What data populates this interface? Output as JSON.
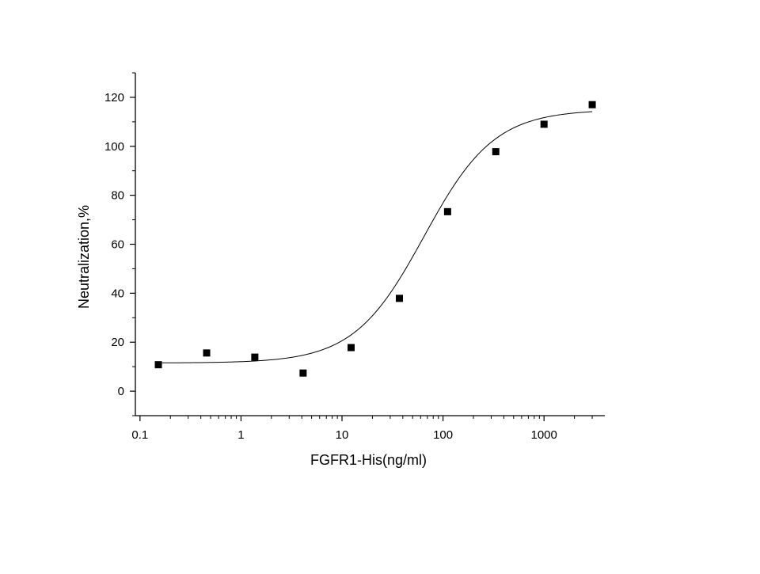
{
  "chart_data": {
    "type": "scatter",
    "title": "",
    "xlabel": "FGFR1-His(ng/ml)",
    "ylabel": "Neutralization,%",
    "x_scale": "log",
    "xlim": [
      0.09,
      4000
    ],
    "ylim": [
      -10,
      130
    ],
    "x_ticks": [
      0.1,
      1,
      10,
      100,
      1000
    ],
    "x_tick_labels": [
      "0.1",
      "1",
      "10",
      "100",
      "1000"
    ],
    "y_ticks": [
      0,
      20,
      40,
      60,
      80,
      100,
      120
    ],
    "y_tick_labels": [
      "0",
      "20",
      "40",
      "60",
      "80",
      "100",
      "120"
    ],
    "grid": false,
    "legend": "none",
    "series": [
      {
        "marker": "square",
        "color": "#000000",
        "points": [
          {
            "x": 0.152,
            "y": 10.8
          },
          {
            "x": 0.457,
            "y": 15.6
          },
          {
            "x": 1.37,
            "y": 13.9
          },
          {
            "x": 4.12,
            "y": 7.4
          },
          {
            "x": 12.3,
            "y": 17.8
          },
          {
            "x": 37.0,
            "y": 37.9
          },
          {
            "x": 111,
            "y": 73.3
          },
          {
            "x": 333,
            "y": 97.8
          },
          {
            "x": 1000,
            "y": 109
          },
          {
            "x": 3000,
            "y": 117
          }
        ]
      }
    ],
    "fit_curve": {
      "type": "four-parameter logistic",
      "color": "#000000",
      "bottom": 11.5,
      "top": 115,
      "ec50": 65,
      "hill": 1.25,
      "x_range": [
        0.15,
        3000
      ]
    }
  }
}
